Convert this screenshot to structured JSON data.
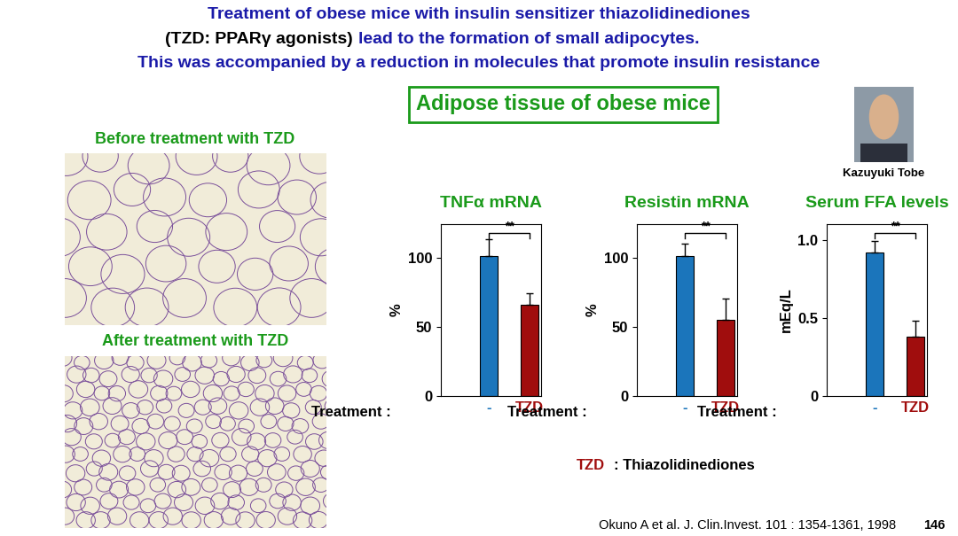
{
  "header": {
    "line1": "Treatment of obese mice with insulin sensitizer thiazolidinediones",
    "line2": [
      {
        "text": "(TZD: PPARγ agonists)",
        "color": "#000000"
      },
      {
        "text": "lead to the formation of small adipocytes.",
        "color": "#1a1aa8"
      }
    ],
    "line3": "This was accompanied by a reduction in molecules that promote insulin resistance",
    "color": "#1a1aa8"
  },
  "panel_title": "Adipose tissue of obese mice",
  "images": [
    {
      "caption": "Before treatment with TZD"
    },
    {
      "caption": "After treatment with TZD"
    }
  ],
  "person": "Kazuyuki Tobe",
  "note": [
    {
      "text": "TZD",
      "color": "#a00d0d"
    },
    {
      "text": ": Thiazolidinediones",
      "color": "#000000"
    }
  ],
  "citation": "Okuno A et al. J. Clin.Invest. 101 : 1354-1361, 1998",
  "page": "146",
  "chart_data": [
    {
      "type": "bar",
      "title": "TNFα mRNA",
      "ylabel": "%",
      "xlabel": "Treatment :",
      "categories": [
        "-",
        "TZD"
      ],
      "values": [
        101,
        66
      ],
      "errors": [
        12,
        8
      ],
      "colors": [
        "#1b75bb",
        "#a00d0d"
      ],
      "ylim": [
        0,
        124
      ],
      "yticks": [
        0,
        50,
        100
      ],
      "significance": "**"
    },
    {
      "type": "bar",
      "title": "Resistin mRNA",
      "ylabel": "%",
      "xlabel": "Treatment :",
      "categories": [
        "-",
        "TZD"
      ],
      "values": [
        101,
        55
      ],
      "errors": [
        9,
        15
      ],
      "colors": [
        "#1b75bb",
        "#a00d0d"
      ],
      "ylim": [
        0,
        124
      ],
      "yticks": [
        0,
        50,
        100
      ],
      "significance": "**"
    },
    {
      "type": "bar",
      "title": "Serum FFA levels",
      "ylabel": "mEq/L",
      "xlabel": "Treatment :",
      "categories": [
        "-",
        "TZD"
      ],
      "values": [
        0.92,
        0.38
      ],
      "errors": [
        0.07,
        0.1
      ],
      "colors": [
        "#1b75bb",
        "#a00d0d"
      ],
      "ylim": [
        0,
        1.1
      ],
      "yticks": [
        0,
        0.5,
        1.0
      ],
      "significance": "**"
    }
  ]
}
